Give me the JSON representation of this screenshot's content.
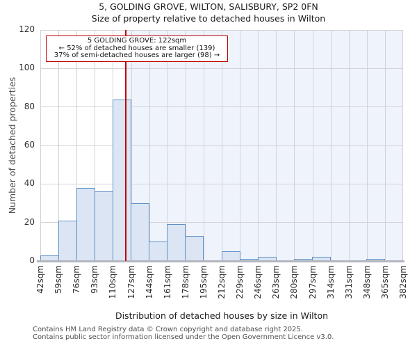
{
  "chart_data": {
    "type": "bar",
    "title": "5, GOLDING GROVE, WILTON, SALISBURY, SP2 0FN",
    "subtitle": "Size of property relative to detached houses in Wilton",
    "xlabel": "Distribution of detached houses by size in Wilton",
    "ylabel": "Number of detached properties",
    "categories": [
      "42sqm",
      "59sqm",
      "76sqm",
      "93sqm",
      "110sqm",
      "127sqm",
      "144sqm",
      "161sqm",
      "178sqm",
      "195sqm",
      "212sqm",
      "229sqm",
      "246sqm",
      "263sqm",
      "280sqm",
      "297sqm",
      "314sqm",
      "331sqm",
      "348sqm",
      "365sqm",
      "382sqm"
    ],
    "values": [
      3,
      21,
      38,
      36,
      84,
      30,
      10,
      19,
      13,
      0,
      5,
      1,
      2,
      0,
      1,
      2,
      0,
      0,
      1,
      0
    ],
    "bin_width_sqm": 17,
    "x_range_sqm": [
      42,
      382
    ],
    "y_ticks": [
      0,
      20,
      40,
      60,
      80,
      100,
      120
    ],
    "ylim": [
      0,
      120
    ],
    "grid": true,
    "legend": null,
    "marker": {
      "value_sqm": 122,
      "shaded_right_of_marker": true
    }
  },
  "annotation": {
    "line1": "5 GOLDING GROVE: 122sqm",
    "line2": "← 52% of detached houses are smaller (139)",
    "line3": "37% of semi-detached houses are larger (98) →"
  },
  "footer": {
    "line1": "Contains HM Land Registry data © Crown copyright and database right 2025.",
    "line2": "Contains public sector information licensed under the Open Government Licence v3.0."
  },
  "colors": {
    "bar_fill": "#dbe5f3",
    "bar_edge": "#6090c8",
    "marker_line": "#c00000",
    "annotation_border": "#c00000",
    "shaded_region": "#eff3fb",
    "gridline": "#d3d3d6",
    "axis_spine": "#b3b6be"
  }
}
